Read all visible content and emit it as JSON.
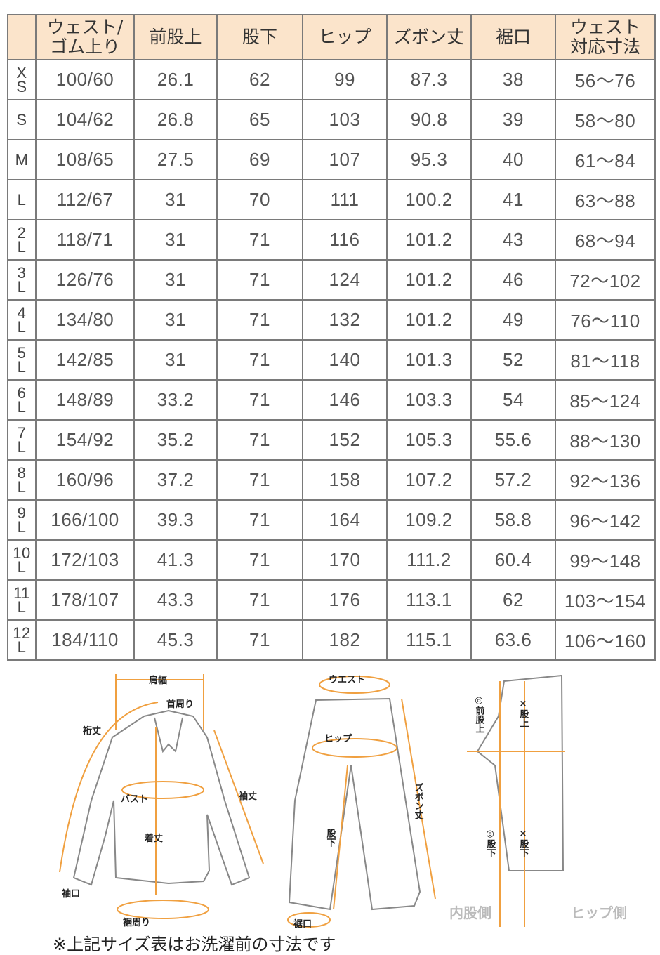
{
  "table": {
    "headers": [
      "",
      "ウェスト/\nゴム上り",
      "前股上",
      "股下",
      "ヒップ",
      "ズボン丈",
      "裾口",
      "ウェスト\n対応寸法"
    ],
    "rows": [
      {
        "size": [
          "X",
          "S"
        ],
        "cells": [
          "100/60",
          "26.1",
          "62",
          "99",
          "87.3",
          "38",
          "56～76"
        ]
      },
      {
        "size": [
          "S"
        ],
        "cells": [
          "104/62",
          "26.8",
          "65",
          "103",
          "90.8",
          "39",
          "58～80"
        ]
      },
      {
        "size": [
          "M"
        ],
        "cells": [
          "108/65",
          "27.5",
          "69",
          "107",
          "95.3",
          "40",
          "61～84"
        ]
      },
      {
        "size": [
          "L"
        ],
        "cells": [
          "112/67",
          "31",
          "70",
          "111",
          "100.2",
          "41",
          "63～88"
        ]
      },
      {
        "size": [
          "2",
          "L"
        ],
        "cells": [
          "118/71",
          "31",
          "71",
          "116",
          "101.2",
          "43",
          "68～94"
        ]
      },
      {
        "size": [
          "3",
          "L"
        ],
        "cells": [
          "126/76",
          "31",
          "71",
          "124",
          "101.2",
          "46",
          "72～102"
        ]
      },
      {
        "size": [
          "4",
          "L"
        ],
        "cells": [
          "134/80",
          "31",
          "71",
          "132",
          "101.2",
          "49",
          "76～110"
        ]
      },
      {
        "size": [
          "5",
          "L"
        ],
        "cells": [
          "142/85",
          "31",
          "71",
          "140",
          "101.3",
          "52",
          "81～118"
        ]
      },
      {
        "size": [
          "6",
          "L"
        ],
        "cells": [
          "148/89",
          "33.2",
          "71",
          "146",
          "103.3",
          "54",
          "85～124"
        ]
      },
      {
        "size": [
          "7",
          "L"
        ],
        "cells": [
          "154/92",
          "35.2",
          "71",
          "152",
          "105.3",
          "55.6",
          "88～130"
        ]
      },
      {
        "size": [
          "8",
          "L"
        ],
        "cells": [
          "160/96",
          "37.2",
          "71",
          "158",
          "107.2",
          "57.2",
          "92～136"
        ]
      },
      {
        "size": [
          "9",
          "L"
        ],
        "cells": [
          "166/100",
          "39.3",
          "71",
          "164",
          "109.2",
          "58.8",
          "96～142"
        ]
      },
      {
        "size": [
          "10",
          "L"
        ],
        "cells": [
          "172/103",
          "41.3",
          "71",
          "170",
          "111.2",
          "60.4",
          "99～148"
        ]
      },
      {
        "size": [
          "11",
          "L"
        ],
        "cells": [
          "178/107",
          "43.3",
          "71",
          "176",
          "113.1",
          "62",
          "103～154"
        ]
      },
      {
        "size": [
          "12",
          "L"
        ],
        "cells": [
          "184/110",
          "45.3",
          "71",
          "182",
          "115.1",
          "63.6",
          "106～160"
        ]
      }
    ]
  },
  "diagram": {
    "shirt": {
      "shoulder": "肩幅",
      "neck": "首周り",
      "yuki": "裄丈",
      "sleeve": "袖丈",
      "bust": "バスト",
      "length": "着丈",
      "cuff": "袖口",
      "hem": "裾周り"
    },
    "pants": {
      "waist": "ウエスト",
      "hip": "ヒップ",
      "inseam": "股下",
      "length": "ズボン丈",
      "hem": "裾口"
    },
    "side": {
      "front_rise": "◎前股上",
      "rise_x": "×股上",
      "inseam_o": "◎股下",
      "inseam_x": "×股下",
      "inner": "内股側",
      "hip_side": "ヒップ側"
    },
    "accent": "#f0a040"
  },
  "note": "※上記サイズ表はお洗濯前の寸法です"
}
